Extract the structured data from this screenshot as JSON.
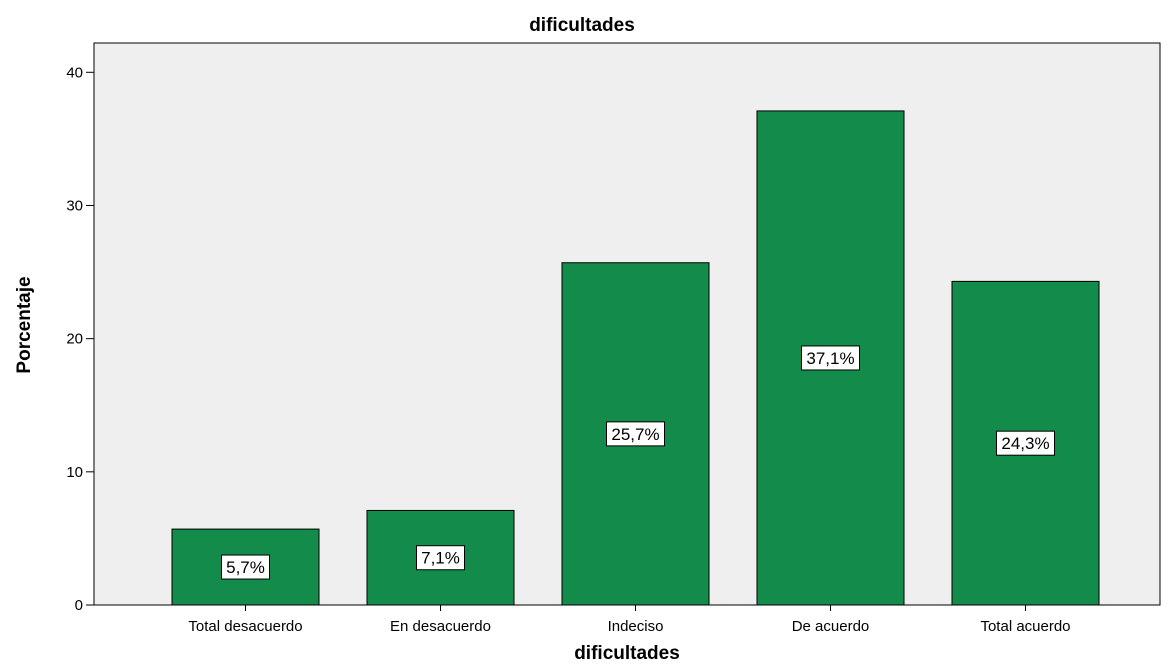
{
  "chart_data": {
    "type": "bar",
    "title": "dificultades",
    "xlabel": "dificultades",
    "ylabel": "Porcentaje",
    "categories": [
      "Total desacuerdo",
      "En desacuerdo",
      "Indeciso",
      "De acuerdo",
      "Total acuerdo"
    ],
    "values": [
      5.7,
      7.1,
      25.7,
      37.1,
      24.3
    ],
    "data_labels": [
      "5,7%",
      "7,1%",
      "25,7%",
      "37,1%",
      "24,3%"
    ],
    "yticks": [
      0,
      10,
      20,
      30,
      40
    ],
    "ylim": [
      0,
      42.2
    ],
    "grid": false,
    "legend": "none",
    "colors": {
      "bar": "#138b4a",
      "plot_background": "#efefef",
      "bar_edge": "#000000"
    }
  }
}
